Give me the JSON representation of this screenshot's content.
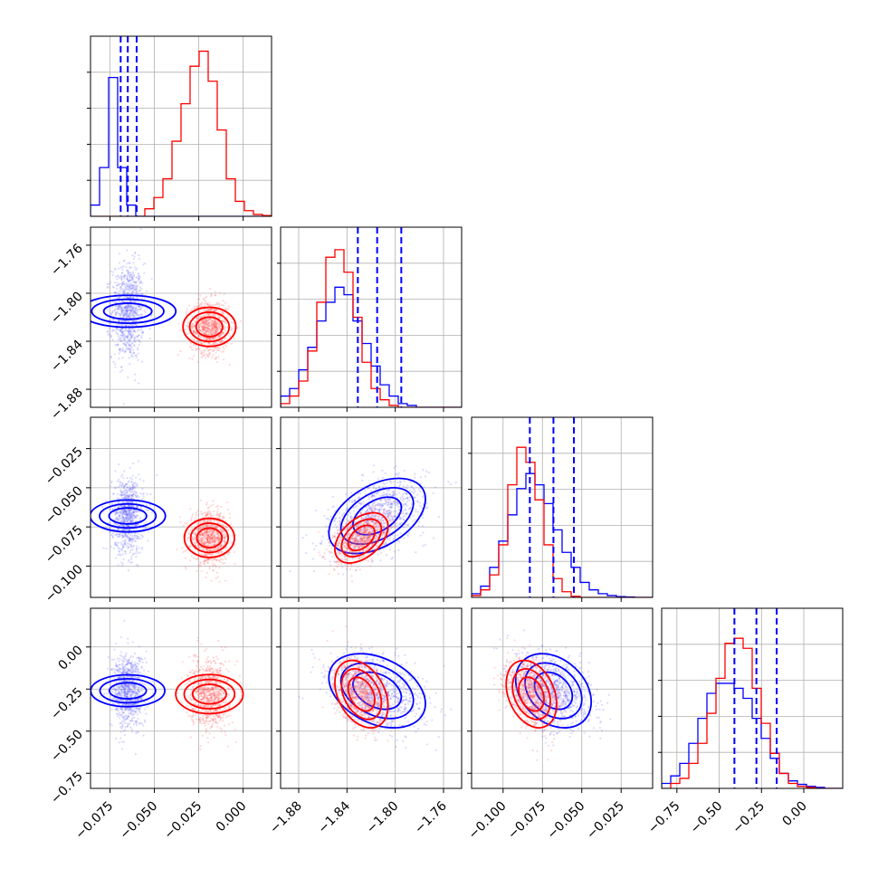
{
  "chart_data": {
    "type": "corner",
    "title": "",
    "grid": true,
    "parameters": [
      {
        "index": 0,
        "name": "",
        "range": [
          -0.086,
          0.016
        ],
        "ticks": [
          -0.075,
          -0.05,
          -0.025,
          0.0
        ],
        "tick_labels": [
          "−0.075",
          "−0.050",
          "−0.025",
          "0.000"
        ]
      },
      {
        "index": 1,
        "name": "",
        "range": [
          -1.895,
          -1.745
        ],
        "ticks": [
          -1.88,
          -1.84,
          -1.8,
          -1.76
        ],
        "tick_labels": [
          "−1.88",
          "−1.84",
          "−1.80",
          "−1.76"
        ]
      },
      {
        "index": 2,
        "name": "",
        "range": [
          -0.12,
          -0.005
        ],
        "ticks": [
          -0.1,
          -0.075,
          -0.05,
          -0.025
        ],
        "tick_labels": [
          "−0.100",
          "−0.075",
          "−0.050",
          "−0.025"
        ]
      },
      {
        "index": 3,
        "name": "",
        "range": [
          -0.84,
          0.23
        ],
        "ticks": [
          -0.75,
          -0.5,
          -0.25,
          0.0
        ],
        "tick_labels": [
          "−0.75",
          "−0.50",
          "−0.25",
          "0.00"
        ]
      }
    ],
    "series": [
      {
        "color": "#0000ff",
        "mean": [
          -0.065,
          -1.815,
          -0.068,
          -0.26
        ],
        "std": [
          0.0045,
          0.02,
          0.012,
          0.11
        ],
        "quantiles": [
          [
            -0.069,
            -0.065,
            -0.06
          ],
          [
            -1.831,
            -1.815,
            -1.795
          ],
          [
            -0.083,
            -0.068,
            -0.055
          ],
          [
            -0.41,
            -0.28,
            -0.16
          ]
        ],
        "histograms": [
          {
            "x0": -0.086,
            "x1": 0.016,
            "counts": [
              0.3,
              1.3,
              3.7,
              1.3,
              0.3,
              0,
              0,
              0,
              0,
              0,
              0,
              0,
              0,
              0,
              0,
              0,
              0,
              0,
              0,
              0
            ],
            "ymax": 4.8
          },
          {
            "x0": -1.895,
            "x1": -1.745,
            "counts": [
              0.3,
              0.5,
              1,
              1.6,
              2.3,
              2.8,
              3.2,
              3.0,
              2.3,
              1.7,
              1.1,
              0.6,
              0.3,
              0.1,
              0.05,
              0,
              0,
              0,
              0,
              0
            ],
            "ymax": 4.8
          },
          {
            "x0": -0.12,
            "x1": -0.005,
            "counts": [
              0.1,
              0.3,
              0.8,
              1.5,
              2.2,
              2.9,
              3.3,
              3.0,
              2.5,
              1.8,
              1.2,
              0.8,
              0.4,
              0.2,
              0.1,
              0.05,
              0.02,
              0.01,
              0,
              0
            ],
            "ymax": 4.8
          },
          {
            "x0": -0.84,
            "x1": 0.23,
            "counts": [
              0.1,
              0.25,
              0.5,
              0.9,
              1.4,
              1.9,
              2.1,
              2.1,
              2.0,
              1.8,
              1.4,
              1.0,
              0.6,
              0.3,
              0.15,
              0.08,
              0.04,
              0.02,
              0,
              0
            ],
            "ymax": 3.6
          }
        ]
      },
      {
        "color": "#ff0000",
        "mean": [
          -0.019,
          -1.828,
          -0.082,
          -0.28
        ],
        "std": [
          0.0055,
          0.011,
          0.008,
          0.1
        ],
        "histograms": [
          {
            "x0": -0.086,
            "x1": 0.016,
            "counts": [
              0,
              0,
              0,
              0,
              0,
              0,
              0.2,
              0.5,
              1.0,
              2.0,
              3.0,
              4.0,
              4.4,
              3.6,
              2.3,
              1.0,
              0.4,
              0.15,
              0.05,
              0.02
            ],
            "ymax": 4.8
          },
          {
            "x0": -1.895,
            "x1": -1.745,
            "counts": [
              0.1,
              0.3,
              0.7,
              1.5,
              2.8,
              4.0,
              4.2,
              3.6,
              2.4,
              1.2,
              0.5,
              0.2,
              0.05,
              0,
              0,
              0,
              0,
              0,
              0,
              0
            ],
            "ymax": 4.8
          },
          {
            "x0": -0.12,
            "x1": -0.005,
            "counts": [
              0.05,
              0.2,
              0.6,
              1.4,
              3.0,
              4.0,
              3.6,
              2.6,
              1.4,
              0.5,
              0.15,
              0.03,
              0,
              0,
              0,
              0,
              0,
              0,
              0,
              0
            ],
            "ymax": 4.8
          },
          {
            "x0": -0.84,
            "x1": 0.23,
            "counts": [
              0,
              0.1,
              0.2,
              0.5,
              0.9,
              1.5,
              2.2,
              2.9,
              3.0,
              2.8,
              2.0,
              1.3,
              0.7,
              0.3,
              0.1,
              0.04,
              0.02,
              0,
              0,
              0
            ],
            "ymax": 3.6
          }
        ]
      }
    ]
  }
}
